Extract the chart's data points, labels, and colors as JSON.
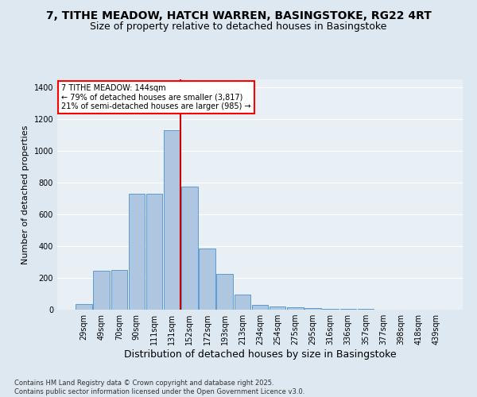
{
  "title_line1": "7, TITHE MEADOW, HATCH WARREN, BASINGSTOKE, RG22 4RT",
  "title_line2": "Size of property relative to detached houses in Basingstoke",
  "xlabel": "Distribution of detached houses by size in Basingstoke",
  "ylabel": "Number of detached properties",
  "categories": [
    "29sqm",
    "49sqm",
    "70sqm",
    "90sqm",
    "111sqm",
    "131sqm",
    "152sqm",
    "172sqm",
    "193sqm",
    "213sqm",
    "234sqm",
    "254sqm",
    "275sqm",
    "295sqm",
    "316sqm",
    "336sqm",
    "357sqm",
    "377sqm",
    "398sqm",
    "418sqm",
    "439sqm"
  ],
  "bar_heights": [
    35,
    245,
    250,
    730,
    730,
    1130,
    775,
    385,
    225,
    95,
    30,
    20,
    15,
    10,
    5,
    3,
    3,
    2,
    1,
    1,
    0
  ],
  "bar_color": "#aec6df",
  "bar_edge_color": "#5b9bd5",
  "vline_color": "#cc0000",
  "vline_x_index": 5.5,
  "annotation_line1": "7 TITHE MEADOW: 144sqm",
  "annotation_line2": "← 79% of detached houses are smaller (3,817)",
  "annotation_line3": "21% of semi-detached houses are larger (985) →",
  "ylim": [
    0,
    1450
  ],
  "yticks": [
    0,
    200,
    400,
    600,
    800,
    1000,
    1200,
    1400
  ],
  "footnote_line1": "Contains HM Land Registry data © Crown copyright and database right 2025.",
  "footnote_line2": "Contains public sector information licensed under the Open Government Licence v3.0.",
  "bg_color": "#dde8f0",
  "plot_bg_color": "#e8eff5",
  "grid_color": "#ffffff",
  "title_fontsize": 10,
  "subtitle_fontsize": 9,
  "axis_label_fontsize": 8,
  "tick_fontsize": 7,
  "footnote_fontsize": 6
}
